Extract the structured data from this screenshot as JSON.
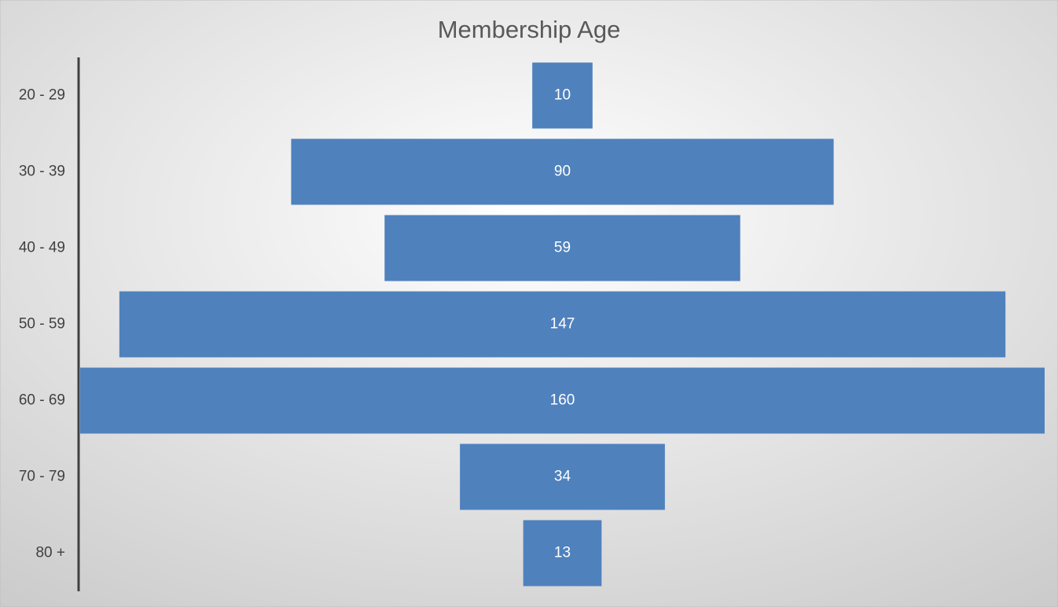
{
  "chart_data": {
    "type": "funnel",
    "title": "Membership Age",
    "categories": [
      "20 - 29",
      "30 - 39",
      "40 - 49",
      "50 - 59",
      "60 - 69",
      "70 - 79",
      "80 +"
    ],
    "values": [
      10,
      90,
      59,
      147,
      160,
      34,
      13
    ],
    "color": "#4f81bd"
  }
}
